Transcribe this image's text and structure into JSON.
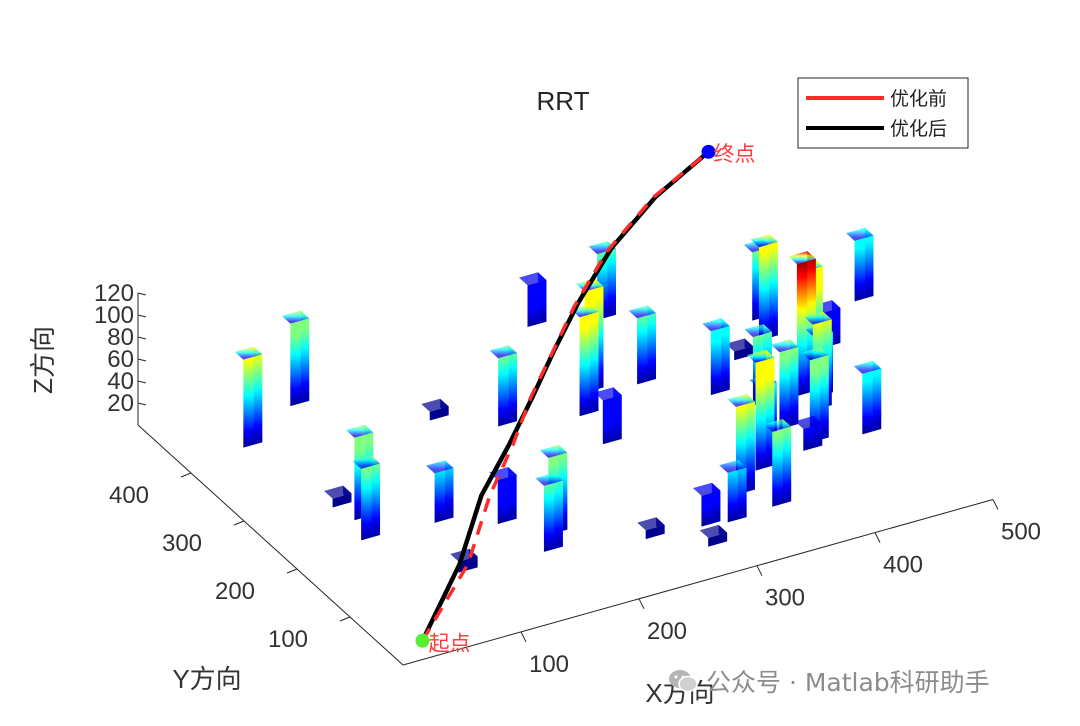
{
  "chart_data": {
    "type": "3d-bar-path",
    "title": "RRT",
    "xlabel": "X方向",
    "ylabel": "Y方向",
    "zlabel": "Z方向",
    "xticks": [
      100,
      200,
      300,
      400,
      500
    ],
    "yticks": [
      100,
      200,
      300,
      400
    ],
    "zticks": [
      20,
      40,
      60,
      80,
      100,
      120
    ],
    "xlim": [
      0,
      500
    ],
    "ylim": [
      0,
      500
    ],
    "zlim": [
      0,
      120
    ],
    "colormap": "jet",
    "legend": {
      "position": "top-right",
      "entries": [
        {
          "name": "优化前",
          "color": "#ff2a2a"
        },
        {
          "name": "优化后",
          "color": "#000000"
        }
      ]
    },
    "start": {
      "label": "起点",
      "x": 30,
      "y": 30,
      "z": 0,
      "color": "#55ee33"
    },
    "goal": {
      "label": "终点",
      "x": 470,
      "y": 470,
      "z": 120,
      "color": "#0000ff"
    },
    "path_before": [
      [
        30,
        30,
        0
      ],
      [
        100,
        100,
        18
      ],
      [
        150,
        170,
        35
      ],
      [
        190,
        215,
        50
      ],
      [
        225,
        260,
        62
      ],
      [
        260,
        300,
        72
      ],
      [
        300,
        345,
        85
      ],
      [
        350,
        395,
        98
      ],
      [
        410,
        440,
        110
      ],
      [
        470,
        470,
        120
      ]
    ],
    "path_after": [
      [
        30,
        30,
        0
      ],
      [
        95,
        105,
        17
      ],
      [
        145,
        175,
        34
      ],
      [
        188,
        218,
        49
      ],
      [
        228,
        262,
        62
      ],
      [
        265,
        305,
        73
      ],
      [
        305,
        348,
        86
      ],
      [
        355,
        397,
        99
      ],
      [
        412,
        440,
        110
      ],
      [
        470,
        470,
        120
      ]
    ],
    "obstacles": [
      {
        "x": 60,
        "y": 425,
        "h": 80
      },
      {
        "x": 120,
        "y": 470,
        "h": 75
      },
      {
        "x": 200,
        "y": 385,
        "h": 8
      },
      {
        "x": 240,
        "y": 345,
        "h": 62
      },
      {
        "x": 320,
        "y": 360,
        "h": 92
      },
      {
        "x": 300,
        "y": 325,
        "h": 90
      },
      {
        "x": 295,
        "y": 270,
        "h": 40
      },
      {
        "x": 360,
        "y": 350,
        "h": 60
      },
      {
        "x": 400,
        "y": 300,
        "h": 58
      },
      {
        "x": 440,
        "y": 345,
        "h": 8
      },
      {
        "x": 420,
        "y": 265,
        "h": 62
      },
      {
        "x": 455,
        "y": 260,
        "h": 120
      },
      {
        "x": 470,
        "y": 280,
        "h": 100
      },
      {
        "x": 465,
        "y": 250,
        "h": 55
      },
      {
        "x": 455,
        "y": 230,
        "h": 78
      },
      {
        "x": 420,
        "y": 215,
        "h": 70
      },
      {
        "x": 395,
        "y": 200,
        "h": 52
      },
      {
        "x": 430,
        "y": 180,
        "h": 75
      },
      {
        "x": 470,
        "y": 170,
        "h": 55
      },
      {
        "x": 375,
        "y": 160,
        "h": 98
      },
      {
        "x": 345,
        "y": 130,
        "h": 80
      },
      {
        "x": 360,
        "y": 95,
        "h": 68
      },
      {
        "x": 320,
        "y": 90,
        "h": 45
      },
      {
        "x": 300,
        "y": 95,
        "h": 28
      },
      {
        "x": 255,
        "y": 100,
        "h": 8
      },
      {
        "x": 290,
        "y": 60,
        "h": 8
      },
      {
        "x": 195,
        "y": 150,
        "h": 70
      },
      {
        "x": 170,
        "y": 190,
        "h": 40
      },
      {
        "x": 130,
        "y": 220,
        "h": 45
      },
      {
        "x": 80,
        "y": 260,
        "h": 75
      },
      {
        "x": 70,
        "y": 225,
        "h": 65
      },
      {
        "x": 180,
        "y": 125,
        "h": 60
      },
      {
        "x": 110,
        "y": 130,
        "h": 10
      },
      {
        "x": 75,
        "y": 290,
        "h": 8
      },
      {
        "x": 380,
        "y": 470,
        "h": 60
      },
      {
        "x": 330,
        "y": 490,
        "h": 38
      },
      {
        "x": 470,
        "y": 365,
        "h": 85
      },
      {
        "x": 480,
        "y": 400,
        "h": 62
      },
      {
        "x": 560,
        "y": 385,
        "h": 55
      },
      {
        "x": 505,
        "y": 325,
        "h": 32
      },
      {
        "x": 420,
        "y": 170,
        "h": 20
      }
    ]
  },
  "watermark": {
    "text": "公众号 · Matlab科研助手",
    "icon": "wechat-icon"
  }
}
